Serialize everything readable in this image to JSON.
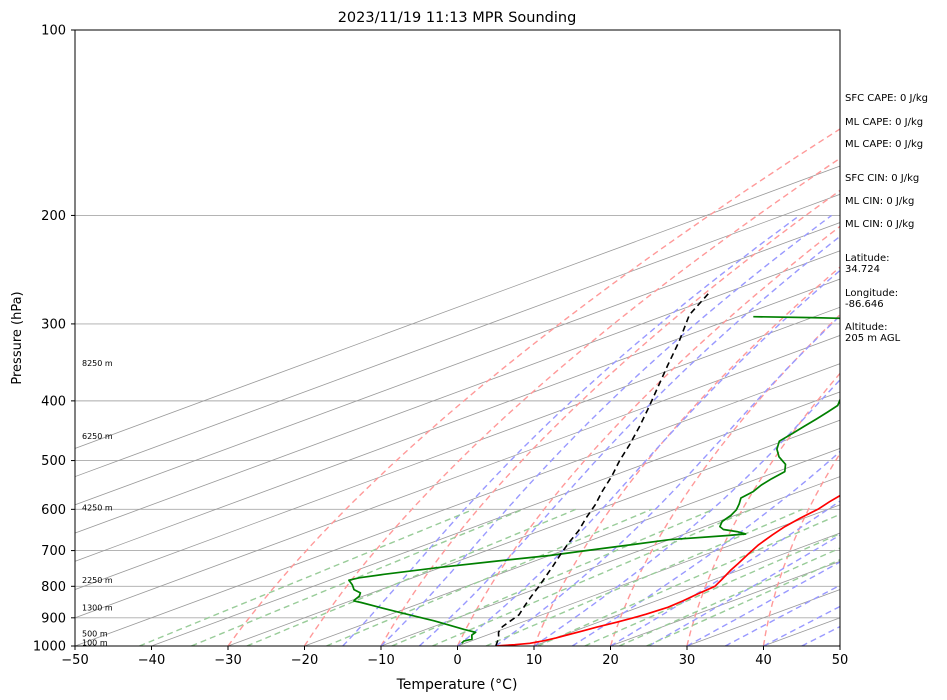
{
  "chart_data": {
    "type": "line",
    "title": "2023/11/19 11:13 MPR Sounding",
    "xlabel": "Temperature (°C)",
    "ylabel": "Pressure (hPa)",
    "xlim": [
      -50,
      50
    ],
    "ylim": [
      1000,
      100
    ],
    "y_scale": "log",
    "diagram": "skew-T log-P",
    "grid": true,
    "x_ticks": [
      -50,
      -40,
      -30,
      -20,
      -10,
      0,
      10,
      20,
      30,
      40,
      50
    ],
    "y_ticks": [
      100,
      200,
      300,
      400,
      500,
      600,
      700,
      800,
      900,
      1000
    ],
    "height_labels": [
      {
        "label": "100 m",
        "pressure": 987
      },
      {
        "label": "500 m",
        "pressure": 955
      },
      {
        "label": "1300 m",
        "pressure": 866
      },
      {
        "label": "2250 m",
        "pressure": 782
      },
      {
        "label": "4250 m",
        "pressure": 596
      },
      {
        "label": "6250 m",
        "pressure": 456
      },
      {
        "label": "8250 m",
        "pressure": 347
      }
    ],
    "colors": {
      "temperature": "#ff0000",
      "dewpoint": "#008000",
      "parcel": "#000000",
      "dry_adiabats": "#ff9999",
      "moist_adiabats": "#9999ff",
      "mixing_ratio": "#99cc99",
      "isotherms": "#999999"
    },
    "series": [
      {
        "key": "temperature",
        "points": [
          {
            "t": 5.0,
            "p": 1000
          },
          {
            "t": 7.0,
            "p": 995
          },
          {
            "t": 8.5,
            "p": 990
          },
          {
            "t": 9.5,
            "p": 980
          },
          {
            "t": 10.0,
            "p": 970
          },
          {
            "t": 10.5,
            "p": 958
          },
          {
            "t": 11.0,
            "p": 945
          },
          {
            "t": 11.5,
            "p": 932
          },
          {
            "t": 12.4,
            "p": 915
          },
          {
            "t": 13.0,
            "p": 900
          },
          {
            "t": 13.4,
            "p": 888
          },
          {
            "t": 13.8,
            "p": 865
          },
          {
            "t": 13.5,
            "p": 845
          },
          {
            "t": 13.0,
            "p": 825
          },
          {
            "t": 12.5,
            "p": 800
          },
          {
            "t": 11.0,
            "p": 780
          },
          {
            "t": 9.0,
            "p": 755
          },
          {
            "t": 7.5,
            "p": 735
          },
          {
            "t": 5.5,
            "p": 710
          },
          {
            "t": 3.5,
            "p": 685
          },
          {
            "t": 1.8,
            "p": 660
          },
          {
            "t": 0.5,
            "p": 640
          },
          {
            "t": -0.5,
            "p": 620
          },
          {
            "t": -1.3,
            "p": 600
          },
          {
            "t": -2.5,
            "p": 583
          },
          {
            "t": -3.6,
            "p": 565
          },
          {
            "t": -4.5,
            "p": 547
          },
          {
            "t": -5.5,
            "p": 527
          },
          {
            "t": -6.8,
            "p": 508
          },
          {
            "t": -8.0,
            "p": 488
          },
          {
            "t": -9.5,
            "p": 470
          },
          {
            "t": -11.0,
            "p": 453
          },
          {
            "t": -12.3,
            "p": 437
          },
          {
            "t": -13.5,
            "p": 422
          },
          {
            "t": -15.0,
            "p": 406
          },
          {
            "t": -16.5,
            "p": 392
          },
          {
            "t": -18.5,
            "p": 378
          },
          {
            "t": -20.3,
            "p": 364
          },
          {
            "t": -22.2,
            "p": 350
          },
          {
            "t": -24.0,
            "p": 338
          },
          {
            "t": -25.8,
            "p": 326
          },
          {
            "t": -27.5,
            "p": 315
          },
          {
            "t": -29.0,
            "p": 304
          },
          {
            "t": -30.5,
            "p": 293
          },
          {
            "t": -32.0,
            "p": 283
          },
          {
            "t": -33.5,
            "p": 274
          },
          {
            "t": -35.0,
            "p": 268
          }
        ]
      },
      {
        "key": "dewpoint",
        "points": [
          {
            "t": -0.4,
            "p": 990
          },
          {
            "t": -0.9,
            "p": 982
          },
          {
            "t": -0.5,
            "p": 975
          },
          {
            "t": -1.2,
            "p": 968
          },
          {
            "t": -2.0,
            "p": 960
          },
          {
            "t": -2.5,
            "p": 950
          },
          {
            "t": -5.0,
            "p": 940
          },
          {
            "t": -8.5,
            "p": 925
          },
          {
            "t": -12.0,
            "p": 910
          },
          {
            "t": -16.0,
            "p": 895
          },
          {
            "t": -20.0,
            "p": 880
          },
          {
            "t": -24.0,
            "p": 865
          },
          {
            "t": -28.0,
            "p": 850
          },
          {
            "t": -29.5,
            "p": 845
          },
          {
            "t": -29.9,
            "p": 840
          },
          {
            "t": -30.5,
            "p": 830
          },
          {
            "t": -31.5,
            "p": 820
          },
          {
            "t": -33.5,
            "p": 810
          },
          {
            "t": -35.5,
            "p": 795
          },
          {
            "t": -37.5,
            "p": 782
          },
          {
            "t": -37.0,
            "p": 775
          },
          {
            "t": -35.0,
            "p": 765
          },
          {
            "t": -30.0,
            "p": 745
          },
          {
            "t": -25.0,
            "p": 728
          },
          {
            "t": -20.0,
            "p": 713
          },
          {
            "t": -17.0,
            "p": 700
          },
          {
            "t": -14.0,
            "p": 688
          },
          {
            "t": -10.0,
            "p": 672
          },
          {
            "t": -4.0,
            "p": 662
          },
          {
            "t": -2.0,
            "p": 658
          },
          {
            "t": -4.0,
            "p": 652
          },
          {
            "t": -6.5,
            "p": 647
          },
          {
            "t": -8.0,
            "p": 640
          },
          {
            "t": -9.5,
            "p": 628
          },
          {
            "t": -10.5,
            "p": 614
          },
          {
            "t": -11.8,
            "p": 601
          },
          {
            "t": -13.5,
            "p": 588
          },
          {
            "t": -15.4,
            "p": 575
          },
          {
            "t": -16.0,
            "p": 562
          },
          {
            "t": -17.3,
            "p": 548
          },
          {
            "t": -18.2,
            "p": 535
          },
          {
            "t": -19.0,
            "p": 521
          },
          {
            "t": -21.5,
            "p": 507
          },
          {
            "t": -25.0,
            "p": 493
          },
          {
            "t": -28.0,
            "p": 479
          },
          {
            "t": -30.5,
            "p": 465
          },
          {
            "t": -31.5,
            "p": 452
          },
          {
            "t": -32.5,
            "p": 440
          },
          {
            "t": -33.5,
            "p": 428
          },
          {
            "t": -34.5,
            "p": 417
          },
          {
            "t": -35.5,
            "p": 407
          },
          {
            "t": -37.5,
            "p": 397
          },
          {
            "t": -39.5,
            "p": 387
          },
          {
            "t": -41.5,
            "p": 377
          },
          {
            "t": -42.5,
            "p": 367
          },
          {
            "t": -44.5,
            "p": 357
          },
          {
            "t": -46.5,
            "p": 347
          },
          {
            "t": -48.5,
            "p": 338
          },
          {
            "t": -47.0,
            "p": 330
          },
          {
            "t": -46.5,
            "p": 323
          },
          {
            "t": -48.5,
            "p": 315
          },
          {
            "t": -50.5,
            "p": 308
          },
          {
            "t": -53.0,
            "p": 300
          },
          {
            "t": -60.0,
            "p": 295
          },
          {
            "t": -70.0,
            "p": 293
          },
          {
            "t": -78.0,
            "p": 292
          }
        ]
      },
      {
        "key": "parcel",
        "points": [
          {
            "t": 5.0,
            "p": 1000
          },
          {
            "t": 2.5,
            "p": 970
          },
          {
            "t": 0.5,
            "p": 950
          },
          {
            "t": -1.0,
            "p": 930
          },
          {
            "t": -2.0,
            "p": 910
          },
          {
            "t": -3.0,
            "p": 890
          },
          {
            "t": -5.5,
            "p": 860
          },
          {
            "t": -8.0,
            "p": 830
          },
          {
            "t": -10.5,
            "p": 800
          },
          {
            "t": -13.2,
            "p": 770
          },
          {
            "t": -16.0,
            "p": 740
          },
          {
            "t": -19.0,
            "p": 710
          },
          {
            "t": -22.0,
            "p": 680
          },
          {
            "t": -25.0,
            "p": 650
          },
          {
            "t": -28.5,
            "p": 620
          },
          {
            "t": -32.0,
            "p": 590
          },
          {
            "t": -36.0,
            "p": 560
          },
          {
            "t": -40.0,
            "p": 530
          },
          {
            "t": -44.5,
            "p": 500
          },
          {
            "t": -49.0,
            "p": 470
          },
          {
            "t": -54.0,
            "p": 440
          },
          {
            "t": -59.5,
            "p": 410
          },
          {
            "t": -65.5,
            "p": 380
          },
          {
            "t": -72.0,
            "p": 350
          },
          {
            "t": -79.0,
            "p": 320
          },
          {
            "t": -87.0,
            "p": 290
          },
          {
            "t": -92.0,
            "p": 268
          }
        ]
      }
    ]
  },
  "info": [
    "SFC CAPE: 0 J/kg",
    "ML CAPE: 0 J/kg",
    "ML CAPE: 0 J/kg",
    "SFC CIN: 0 J/kg",
    "ML CIN: 0 J/kg",
    "ML CIN: 0 J/kg",
    "Latitude:\n34.724",
    "Longitude:\n-86.646",
    "Altitude:\n205 m AGL"
  ]
}
